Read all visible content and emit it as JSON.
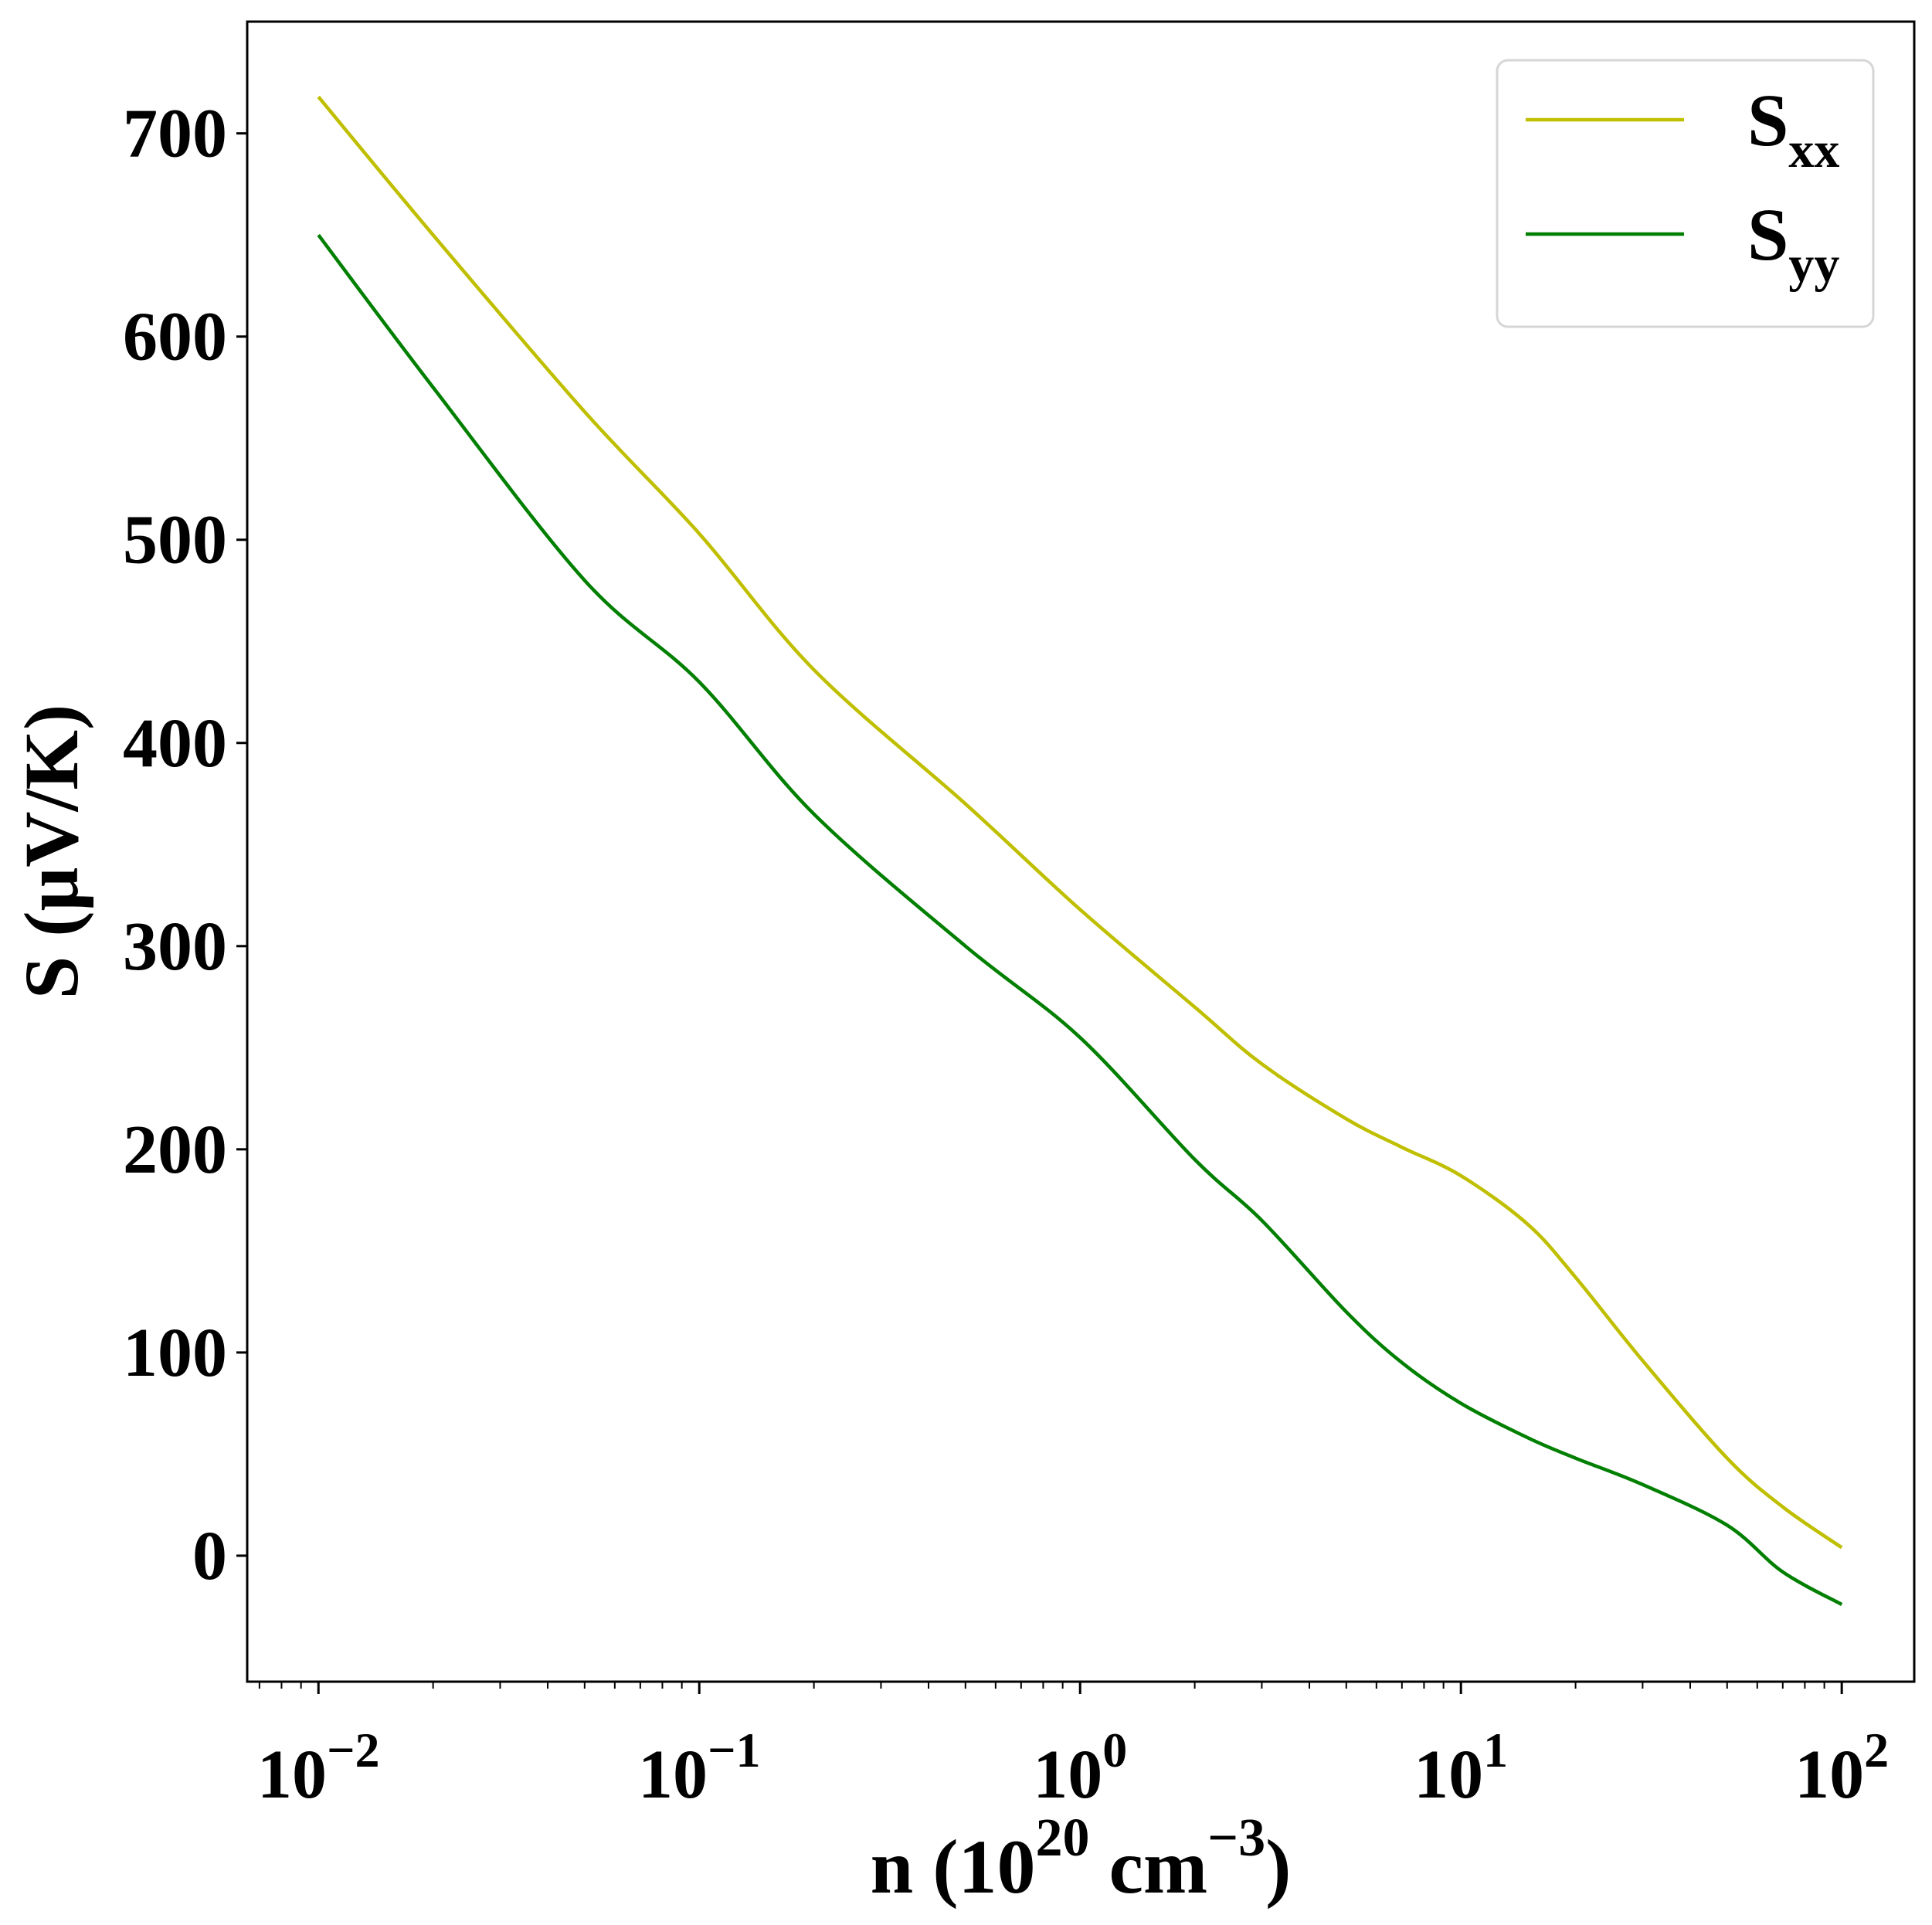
{
  "chart_data": {
    "type": "line",
    "xscale": "log",
    "xlabel": {
      "main": "n (10",
      "sup1": "20",
      "mid": " cm",
      "sup2": "−3",
      "end": ")"
    },
    "ylabel": "S (μV/K)",
    "xlim": [
      0.0065,
      155
    ],
    "ylim": [
      -62,
      755
    ],
    "grid": false,
    "legend_position": "top-right",
    "x_ticks": [
      {
        "value": 0.01,
        "base": "10",
        "exp": "−2"
      },
      {
        "value": 0.1,
        "base": "10",
        "exp": "−1"
      },
      {
        "value": 1,
        "base": "10",
        "exp": "0"
      },
      {
        "value": 10,
        "base": "10",
        "exp": "1"
      },
      {
        "value": 100,
        "base": "10",
        "exp": "2"
      }
    ],
    "y_ticks": [
      0,
      100,
      200,
      300,
      400,
      500,
      600,
      700
    ],
    "series": [
      {
        "name": "S",
        "sub": "xx",
        "color": "#bfbf00",
        "x": [
          0.01,
          0.02,
          0.05,
          0.1,
          0.2,
          0.5,
          1,
          2,
          3,
          5,
          7,
          10,
          15,
          20,
          30,
          50,
          70,
          100
        ],
        "y": [
          718,
          650,
          563,
          503,
          436,
          370,
          318,
          270,
          242,
          215,
          201,
          187,
          163,
          137,
          96,
          48,
          24,
          4
        ]
      },
      {
        "name": "S",
        "sub": "yy",
        "color": "#007f00",
        "x": [
          0.01,
          0.02,
          0.05,
          0.1,
          0.2,
          0.5,
          1,
          2,
          3,
          5,
          7,
          10,
          15,
          20,
          30,
          50,
          70,
          100
        ],
        "y": [
          650,
          575,
          480,
          430,
          365,
          300,
          255,
          195,
          165,
          120,
          95,
          75,
          58,
          48,
          35,
          15,
          -8,
          -24
        ]
      }
    ]
  }
}
